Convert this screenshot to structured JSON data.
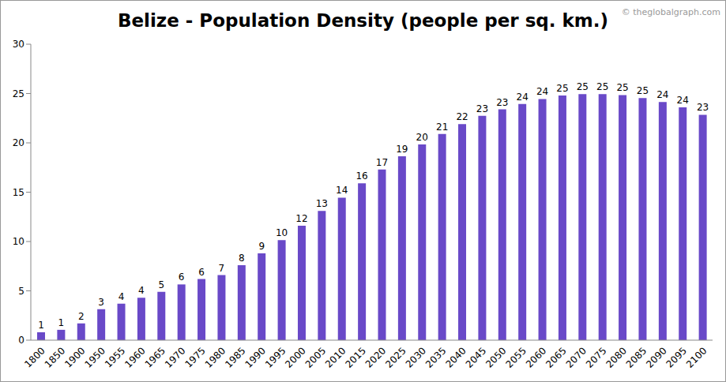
{
  "chart_data": {
    "type": "bar",
    "title": "Belize - Population Density (people per sq. km.)",
    "annotations": [
      "© theglobalgraph.com"
    ],
    "categories": [
      "1800",
      "1850",
      "1900",
      "1950",
      "1955",
      "1960",
      "1965",
      "1970",
      "1975",
      "1980",
      "1985",
      "1990",
      "1995",
      "2000",
      "2005",
      "2010",
      "2015",
      "2020",
      "2025",
      "2030",
      "2035",
      "2040",
      "2045",
      "2050",
      "2055",
      "2060",
      "2065",
      "2070",
      "2075",
      "2080",
      "2085",
      "2090",
      "2095",
      "2100"
    ],
    "values": [
      0.8,
      1.05,
      1.7,
      3.15,
      3.7,
      4.3,
      4.9,
      5.65,
      6.2,
      6.6,
      7.6,
      8.8,
      10.15,
      11.6,
      13.1,
      14.45,
      15.9,
      17.3,
      18.65,
      19.85,
      20.9,
      21.9,
      22.75,
      23.4,
      23.95,
      24.45,
      24.8,
      24.95,
      24.95,
      24.85,
      24.55,
      24.15,
      23.6,
      22.85
    ],
    "value_labels": [
      "1",
      "1",
      "2",
      "3",
      "4",
      "4",
      "5",
      "6",
      "6",
      "7",
      "8",
      "9",
      "10",
      "12",
      "13",
      "14",
      "16",
      "17",
      "19",
      "20",
      "21",
      "22",
      "23",
      "23",
      "24",
      "24",
      "25",
      "25",
      "25",
      "25",
      "25",
      "24",
      "24",
      "23"
    ],
    "color": "#6949c8",
    "ylim": [
      0,
      30
    ],
    "yticks": [
      0,
      5,
      10,
      15,
      20,
      25,
      30
    ],
    "grid": false,
    "data_labels": true
  }
}
